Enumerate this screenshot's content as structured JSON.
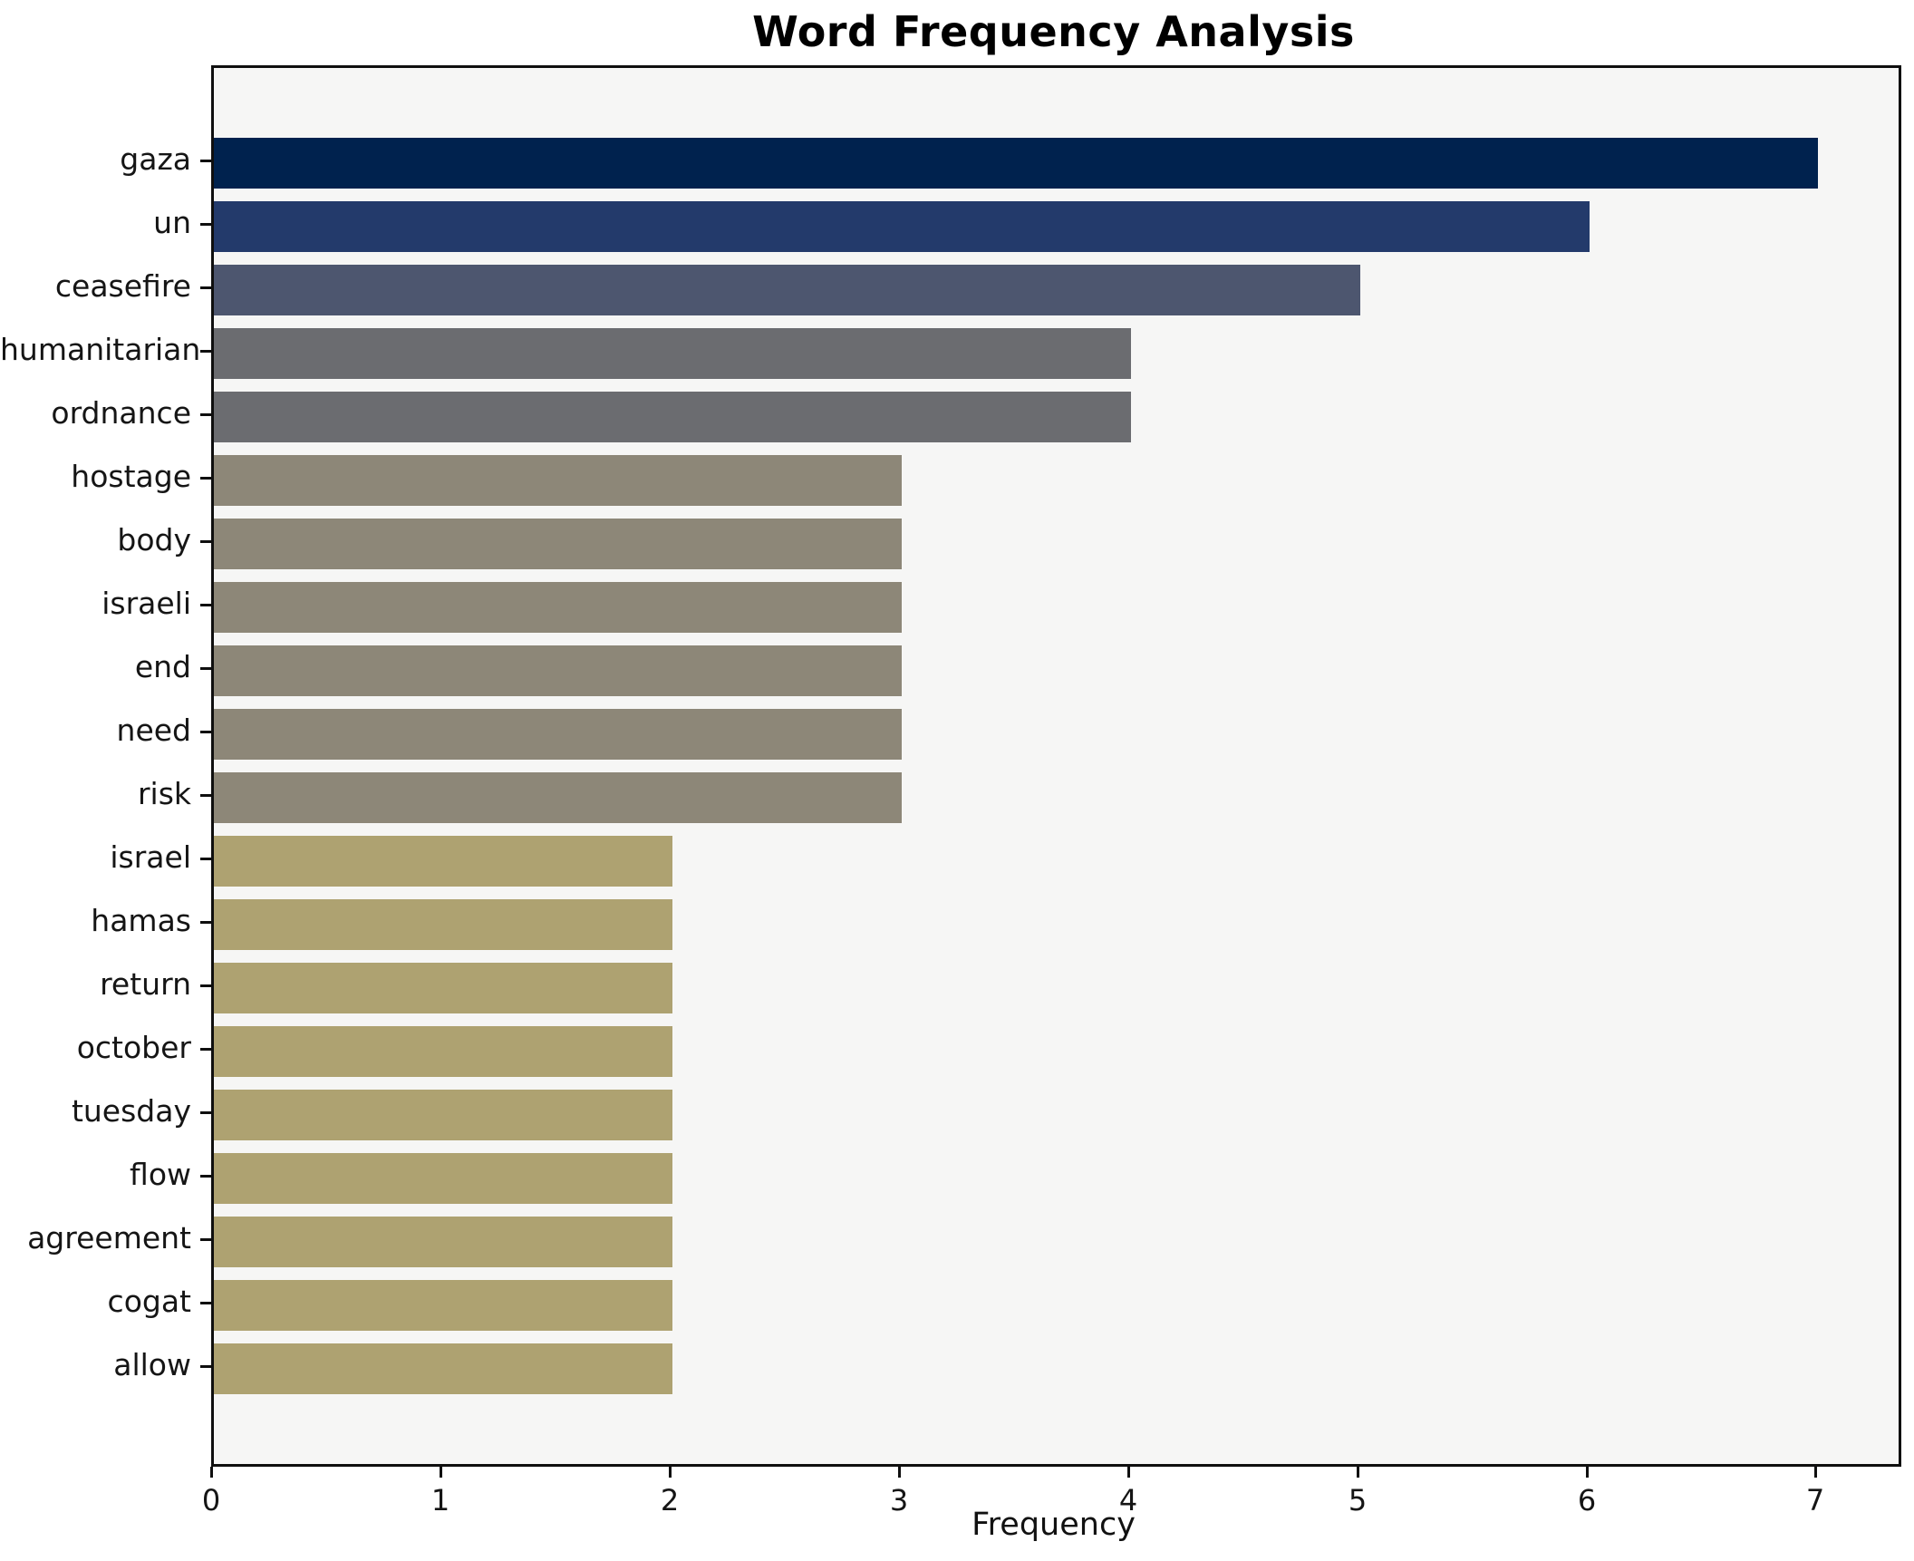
{
  "chart_data": {
    "type": "bar",
    "orientation": "horizontal",
    "title": "Word Frequency Analysis",
    "xlabel": "Frequency",
    "ylabel": "",
    "xlim": [
      0,
      7.35
    ],
    "xticks": [
      0,
      1,
      2,
      3,
      4,
      5,
      6,
      7
    ],
    "grid": false,
    "legend_position": "none",
    "plot_background": "#f6f6f5",
    "figure_background": "#ffffff",
    "spine_color": "#0f0f0f",
    "bar_height_fraction": 0.8,
    "items": [
      {
        "label": "gaza",
        "value": 7,
        "color": "#00224e"
      },
      {
        "label": "un",
        "value": 6,
        "color": "#233a6b"
      },
      {
        "label": "ceasefire",
        "value": 5,
        "color": "#4d566f"
      },
      {
        "label": "humanitarian",
        "value": 4,
        "color": "#6b6c70"
      },
      {
        "label": "ordnance",
        "value": 4,
        "color": "#6b6c70"
      },
      {
        "label": "hostage",
        "value": 3,
        "color": "#8d8778"
      },
      {
        "label": "body",
        "value": 3,
        "color": "#8d8778"
      },
      {
        "label": "israeli",
        "value": 3,
        "color": "#8d8778"
      },
      {
        "label": "end",
        "value": 3,
        "color": "#8d8778"
      },
      {
        "label": "need",
        "value": 3,
        "color": "#8d8778"
      },
      {
        "label": "risk",
        "value": 3,
        "color": "#8d8778"
      },
      {
        "label": "israel",
        "value": 2,
        "color": "#aea271"
      },
      {
        "label": "hamas",
        "value": 2,
        "color": "#aea271"
      },
      {
        "label": "return",
        "value": 2,
        "color": "#aea271"
      },
      {
        "label": "october",
        "value": 2,
        "color": "#aea271"
      },
      {
        "label": "tuesday",
        "value": 2,
        "color": "#aea271"
      },
      {
        "label": "flow",
        "value": 2,
        "color": "#aea271"
      },
      {
        "label": "agreement",
        "value": 2,
        "color": "#aea271"
      },
      {
        "label": "cogat",
        "value": 2,
        "color": "#aea271"
      },
      {
        "label": "allow",
        "value": 2,
        "color": "#aea271"
      }
    ]
  }
}
